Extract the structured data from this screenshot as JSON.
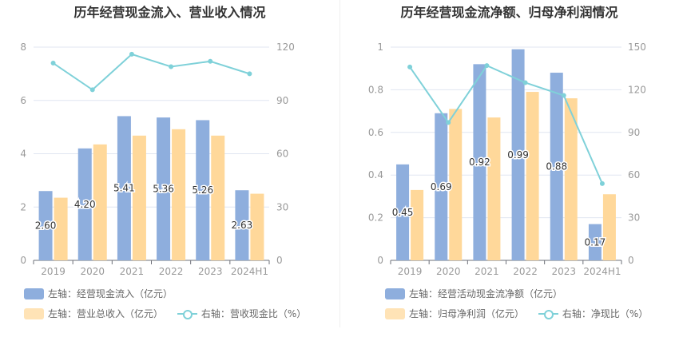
{
  "colors": {
    "bar1": "#8eaedd",
    "bar2": "#ffd89a",
    "line": "#7fd1d9",
    "axis": "#999999",
    "grid": "#e0e6f1"
  },
  "chart_data": [
    {
      "type": "bar",
      "title": "历年经营现金流入、营业收入情况",
      "categories": [
        "2019",
        "2020",
        "2021",
        "2022",
        "2023",
        "2024H1"
      ],
      "y_left_ticks": [
        "0",
        "2",
        "4",
        "6",
        "8"
      ],
      "y_right_ticks": [
        "0",
        "30",
        "60",
        "90",
        "120"
      ],
      "ylim_left": [
        0,
        8
      ],
      "ylim_right": [
        0,
        120
      ],
      "series": [
        {
          "name": "左轴：经营现金流入（亿元）",
          "axis": "left",
          "type": "bar",
          "values": [
            2.6,
            4.2,
            5.41,
            5.36,
            5.26,
            2.63
          ],
          "labels": [
            "2.60",
            "4.20",
            "5.41",
            "5.36",
            "5.26",
            "2.63"
          ]
        },
        {
          "name": "左轴：营业总收入（亿元）",
          "axis": "left",
          "type": "bar",
          "values": [
            2.35,
            4.35,
            4.68,
            4.92,
            4.68,
            2.5
          ]
        },
        {
          "name": "右轴：营收现金比（%）",
          "axis": "right",
          "type": "line",
          "values": [
            111,
            96,
            116,
            109,
            112,
            105
          ]
        }
      ]
    },
    {
      "type": "bar",
      "title": "历年经营现金流净额、归母净利润情况",
      "categories": [
        "2019",
        "2020",
        "2021",
        "2022",
        "2023",
        "2024H1"
      ],
      "y_left_ticks": [
        "0",
        "0.2",
        "0.4",
        "0.6",
        "0.8",
        "1"
      ],
      "y_right_ticks": [
        "0",
        "30",
        "60",
        "90",
        "120",
        "150"
      ],
      "ylim_left": [
        0,
        1
      ],
      "ylim_right": [
        0,
        150
      ],
      "series": [
        {
          "name": "左轴：经营活动现金流净额（亿元）",
          "axis": "left",
          "type": "bar",
          "values": [
            0.45,
            0.69,
            0.92,
            0.99,
            0.88,
            0.17
          ],
          "labels": [
            "0.45",
            "0.69",
            "0.92",
            "0.99",
            "0.88",
            "0.17"
          ]
        },
        {
          "name": "左轴：归母净利润（亿元）",
          "axis": "left",
          "type": "bar",
          "values": [
            0.33,
            0.71,
            0.67,
            0.79,
            0.76,
            0.31
          ]
        },
        {
          "name": "右轴：净现比（%）",
          "axis": "right",
          "type": "line",
          "values": [
            136,
            97,
            137,
            125,
            116,
            54
          ]
        }
      ]
    }
  ]
}
